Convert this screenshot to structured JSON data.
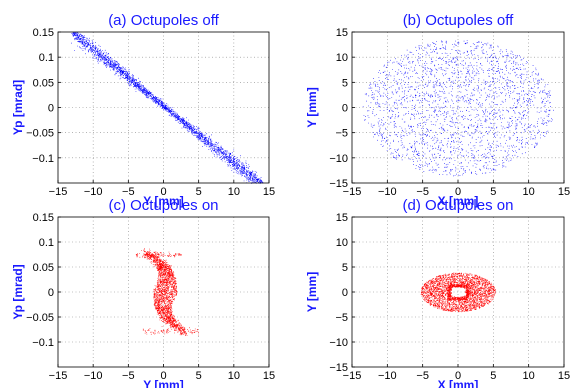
{
  "figure": {
    "label_color": "#1a1aff",
    "panel_bg": "#ffffff"
  },
  "chart_data": [
    {
      "type": "scatter",
      "title": "(a) Octupoles off",
      "xlabel": "Y [mm]",
      "ylabel": "Yp [mrad]",
      "xlim": [
        -15,
        15
      ],
      "ylim": [
        -0.15,
        0.15
      ],
      "xticks": [
        "−15",
        "−10",
        "−5",
        "0",
        "5",
        "10",
        "15"
      ],
      "yticks": [
        "0.15",
        "0.1",
        "0.05",
        "0",
        "−0.05",
        "−0.1"
      ],
      "grid": true,
      "color": "#0000ff",
      "distribution": "thin diagonal band from (-13, 0.15) to (14, -0.155)"
    },
    {
      "type": "scatter",
      "title": "(b) Octupoles off",
      "xlabel": "X [mm]",
      "ylabel": "Y [mm]",
      "xlim": [
        -15,
        15
      ],
      "ylim": [
        -15,
        15
      ],
      "xticks": [
        "−15",
        "−10",
        "−5",
        "0",
        "5",
        "10",
        "15"
      ],
      "yticks": [
        "15",
        "10",
        "5",
        "0",
        "−5",
        "−10",
        "−15"
      ],
      "grid": true,
      "color": "#0000ff",
      "distribution": "uniform ellipse, x radius about 13.5 mm, y radius about 13.5 mm"
    },
    {
      "type": "scatter",
      "title": "(c) Octupoles on",
      "xlabel": "Y [mm]",
      "ylabel": "Yp [mrad]",
      "xlim": [
        -15,
        15
      ],
      "ylim": [
        -0.15,
        0.15
      ],
      "xticks": [
        "−15",
        "−10",
        "−5",
        "0",
        "5",
        "10",
        "15"
      ],
      "yticks": [
        "0.15",
        "0.1",
        "0.05",
        "0",
        "−0.05",
        "−0.1"
      ],
      "grid": true,
      "color": "#ff0000",
      "distribution": "S-shaped band between y = -4 and 5 mm, yp = -0.08 and 0.08 mrad"
    },
    {
      "type": "scatter",
      "title": "(d) Octupoles on",
      "xlabel": "X [mm]",
      "ylabel": "Y [mm]",
      "xlim": [
        -15,
        15
      ],
      "ylim": [
        -15,
        15
      ],
      "xticks": [
        "−15",
        "−10",
        "−5",
        "0",
        "5",
        "10",
        "15"
      ],
      "yticks": [
        "15",
        "10",
        "5",
        "0",
        "−5",
        "−10",
        "−15"
      ],
      "grid": true,
      "color": "#ff0000",
      "distribution": "compact ellipse, x radius about 5 mm, y radius about 3.8 mm, with a hollow near the center"
    }
  ]
}
